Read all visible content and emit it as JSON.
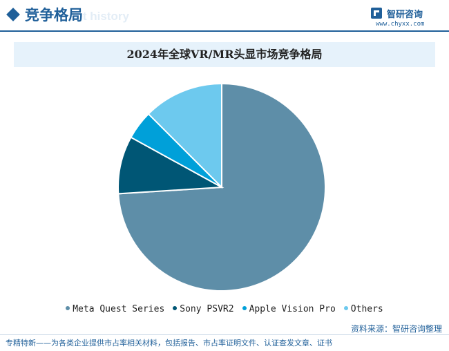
{
  "header": {
    "section_title": "竞争格局",
    "section_subtitle": "ent history"
  },
  "brand": {
    "name": "智研咨询",
    "url": "www.chyxx.com"
  },
  "chart_data": {
    "type": "pie",
    "title": "2024年全球VR/MR头显市场竞争格局",
    "categories": [
      "Meta Quest Series",
      "Sony PSVR2",
      "Apple Vision Pro",
      "Others"
    ],
    "values": [
      74.0,
      9.0,
      4.5,
      12.5
    ],
    "colors": [
      "#5e8ea8",
      "#005675",
      "#00a0d9",
      "#6dc9ee"
    ],
    "start_angle_deg": 0,
    "direction": "clockwise",
    "legend_position": "bottom"
  },
  "source": "资料来源：智研咨询整理",
  "footer": "专精特新——为各类企业提供市占率相关材料，包括报告、市占率证明文件、认证查发文章、证书"
}
